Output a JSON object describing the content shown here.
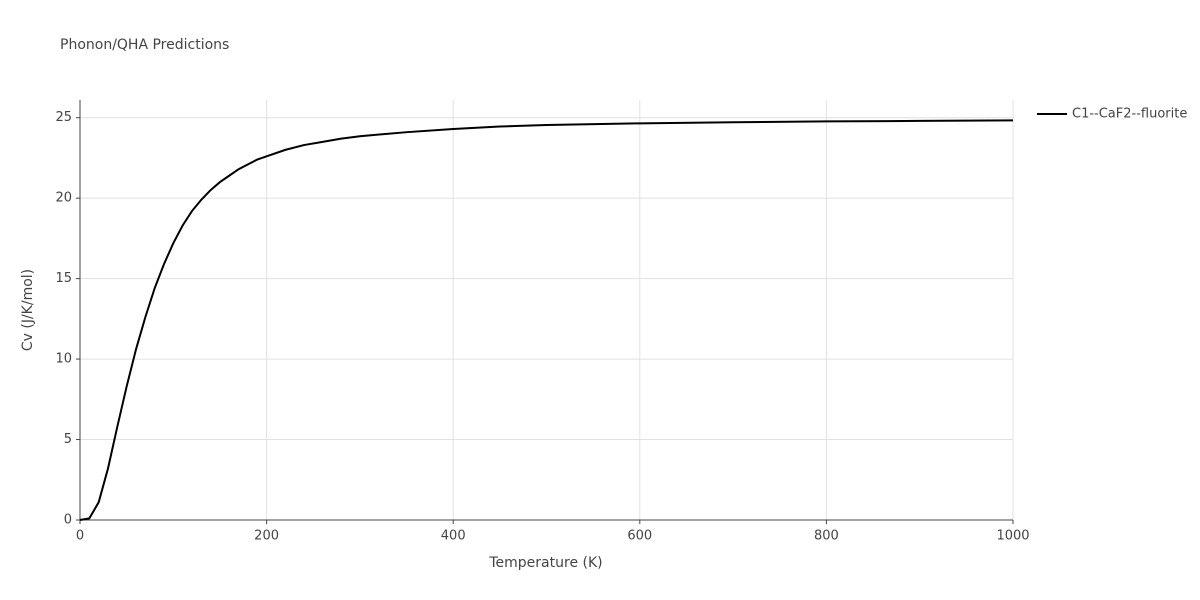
{
  "chart_data": {
    "type": "line",
    "title": "Phonon/QHA Predictions",
    "x_label": "Temperature (K)",
    "y_label": "Cv (J/K/mol)",
    "x": [
      0,
      10,
      20,
      30,
      40,
      50,
      60,
      70,
      80,
      90,
      100,
      110,
      120,
      130,
      140,
      150,
      160,
      170,
      180,
      190,
      200,
      220,
      240,
      260,
      280,
      300,
      350,
      400,
      450,
      500,
      600,
      700,
      800,
      900,
      1000
    ],
    "series": [
      {
        "name": "C1--CaF2--fluorite",
        "color": "#000000",
        "values": [
          0,
          0.1,
          1.1,
          3.2,
          5.8,
          8.3,
          10.6,
          12.6,
          14.4,
          15.9,
          17.2,
          18.3,
          19.2,
          19.9,
          20.5,
          21.0,
          21.4,
          21.8,
          22.1,
          22.4,
          22.6,
          23.0,
          23.3,
          23.5,
          23.7,
          23.85,
          24.1,
          24.3,
          24.45,
          24.55,
          24.65,
          24.72,
          24.77,
          24.8,
          24.83
        ]
      }
    ],
    "xlim": [
      0,
      1000
    ],
    "xticks": [
      0,
      200,
      400,
      600,
      800,
      1000
    ],
    "ylim": [
      0,
      26.1
    ],
    "yticks": [
      0,
      5,
      10,
      15,
      20,
      25
    ],
    "grid": true,
    "legend": "right"
  }
}
